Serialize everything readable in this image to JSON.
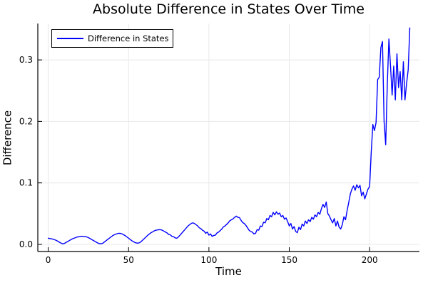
{
  "chart_data": {
    "type": "line",
    "title": "Absolute Difference in States Over Time",
    "xlabel": "Time",
    "ylabel": "Difference",
    "legend_position": "top-left",
    "grid": true,
    "xlim": [
      -6.48,
      231.0
    ],
    "ylim": [
      -0.0116,
      0.3592
    ],
    "xticks": {
      "values": [
        0,
        50,
        100,
        150,
        200
      ],
      "labels": [
        "0",
        "50",
        "100",
        "150",
        "200"
      ]
    },
    "yticks": {
      "values": [
        0.0,
        0.1,
        0.2,
        0.3
      ],
      "labels": [
        "0.0",
        "0.1",
        "0.2",
        "0.3"
      ]
    },
    "colors": {
      "line": "#0000ff",
      "grid": "#e8e8e8",
      "axis": "#000000",
      "text": "#000000",
      "background": "#ffffff"
    },
    "series": [
      {
        "name": "Difference in States",
        "color": "#0000ff",
        "points": [
          [
            0,
            0.01
          ],
          [
            1,
            0.0095
          ],
          [
            2,
            0.009
          ],
          [
            3,
            0.0085
          ],
          [
            4,
            0.0075
          ],
          [
            5,
            0.0065
          ],
          [
            6,
            0.005
          ],
          [
            7,
            0.0035
          ],
          [
            8,
            0.002
          ],
          [
            9,
            0.001
          ],
          [
            10,
            0.0015
          ],
          [
            11,
            0.003
          ],
          [
            12,
            0.0045
          ],
          [
            13,
            0.006
          ],
          [
            14,
            0.0075
          ],
          [
            15,
            0.009
          ],
          [
            16,
            0.01
          ],
          [
            17,
            0.011
          ],
          [
            18,
            0.012
          ],
          [
            19,
            0.0125
          ],
          [
            20,
            0.013
          ],
          [
            21,
            0.0132
          ],
          [
            22,
            0.013
          ],
          [
            23,
            0.0128
          ],
          [
            24,
            0.012
          ],
          [
            25,
            0.011
          ],
          [
            26,
            0.0095
          ],
          [
            27,
            0.008
          ],
          [
            28,
            0.0065
          ],
          [
            29,
            0.005
          ],
          [
            30,
            0.0035
          ],
          [
            31,
            0.002
          ],
          [
            32,
            0.0012
          ],
          [
            33,
            0.001
          ],
          [
            34,
            0.002
          ],
          [
            35,
            0.004
          ],
          [
            36,
            0.006
          ],
          [
            37,
            0.008
          ],
          [
            38,
            0.01
          ],
          [
            39,
            0.012
          ],
          [
            40,
            0.014
          ],
          [
            41,
            0.0155
          ],
          [
            42,
            0.0165
          ],
          [
            43,
            0.0175
          ],
          [
            44,
            0.018
          ],
          [
            45,
            0.0178
          ],
          [
            46,
            0.017
          ],
          [
            47,
            0.0155
          ],
          [
            48,
            0.014
          ],
          [
            49,
            0.012
          ],
          [
            50,
            0.01
          ],
          [
            51,
            0.008
          ],
          [
            52,
            0.006
          ],
          [
            53,
            0.0045
          ],
          [
            54,
            0.003
          ],
          [
            55,
            0.0022
          ],
          [
            56,
            0.002
          ],
          [
            57,
            0.003
          ],
          [
            58,
            0.005
          ],
          [
            59,
            0.0075
          ],
          [
            60,
            0.01
          ],
          [
            61,
            0.0125
          ],
          [
            62,
            0.015
          ],
          [
            63,
            0.017
          ],
          [
            64,
            0.019
          ],
          [
            65,
            0.0205
          ],
          [
            66,
            0.022
          ],
          [
            67,
            0.023
          ],
          [
            68,
            0.0235
          ],
          [
            69,
            0.024
          ],
          [
            70,
            0.0238
          ],
          [
            71,
            0.023
          ],
          [
            72,
            0.0215
          ],
          [
            73,
            0.02
          ],
          [
            74,
            0.0185
          ],
          [
            75,
            0.016
          ],
          [
            76,
            0.0155
          ],
          [
            77,
            0.013
          ],
          [
            78,
            0.0125
          ],
          [
            79,
            0.0105
          ],
          [
            80,
            0.01
          ],
          [
            81,
            0.012
          ],
          [
            82,
            0.015
          ],
          [
            83,
            0.018
          ],
          [
            84,
            0.021
          ],
          [
            85,
            0.024
          ],
          [
            86,
            0.027
          ],
          [
            87,
            0.03
          ],
          [
            88,
            0.032
          ],
          [
            89,
            0.034
          ],
          [
            90,
            0.035
          ],
          [
            91,
            0.034
          ],
          [
            92,
            0.032
          ],
          [
            93,
            0.03
          ],
          [
            94,
            0.027
          ],
          [
            95,
            0.0255
          ],
          [
            96,
            0.023
          ],
          [
            97,
            0.0215
          ],
          [
            98,
            0.018
          ],
          [
            99,
            0.02
          ],
          [
            100,
            0.015
          ],
          [
            101,
            0.017
          ],
          [
            102,
            0.013
          ],
          [
            103,
            0.0145
          ],
          [
            104,
            0.015
          ],
          [
            105,
            0.0185
          ],
          [
            106,
            0.02
          ],
          [
            107,
            0.0225
          ],
          [
            108,
            0.025
          ],
          [
            109,
            0.0285
          ],
          [
            110,
            0.03
          ],
          [
            111,
            0.0325
          ],
          [
            112,
            0.035
          ],
          [
            113,
            0.0385
          ],
          [
            114,
            0.04
          ],
          [
            115,
            0.0415
          ],
          [
            116,
            0.044
          ],
          [
            117,
            0.046
          ],
          [
            118,
            0.044
          ],
          [
            119,
            0.0435
          ],
          [
            120,
            0.039
          ],
          [
            121,
            0.0355
          ],
          [
            122,
            0.034
          ],
          [
            123,
            0.031
          ],
          [
            124,
            0.027
          ],
          [
            125,
            0.023
          ],
          [
            126,
            0.021
          ],
          [
            127,
            0.02
          ],
          [
            128,
            0.017
          ],
          [
            129,
            0.018
          ],
          [
            130,
            0.024
          ],
          [
            131,
            0.023
          ],
          [
            132,
            0.03
          ],
          [
            133,
            0.029
          ],
          [
            134,
            0.036
          ],
          [
            135,
            0.035
          ],
          [
            136,
            0.042
          ],
          [
            137,
            0.04
          ],
          [
            138,
            0.047
          ],
          [
            139,
            0.045
          ],
          [
            140,
            0.052
          ],
          [
            141,
            0.048
          ],
          [
            142,
            0.053
          ],
          [
            143,
            0.049
          ],
          [
            144,
            0.051
          ],
          [
            145,
            0.045
          ],
          [
            146,
            0.047
          ],
          [
            147,
            0.041
          ],
          [
            148,
            0.043
          ],
          [
            149,
            0.037
          ],
          [
            150,
            0.03
          ],
          [
            151,
            0.034
          ],
          [
            152,
            0.025
          ],
          [
            153,
            0.029
          ],
          [
            154,
            0.021
          ],
          [
            155,
            0.019
          ],
          [
            156,
            0.028
          ],
          [
            157,
            0.024
          ],
          [
            158,
            0.033
          ],
          [
            159,
            0.03
          ],
          [
            160,
            0.038
          ],
          [
            161,
            0.034
          ],
          [
            162,
            0.04
          ],
          [
            163,
            0.037
          ],
          [
            164,
            0.044
          ],
          [
            165,
            0.041
          ],
          [
            166,
            0.048
          ],
          [
            167,
            0.045
          ],
          [
            168,
            0.052
          ],
          [
            169,
            0.049
          ],
          [
            170,
            0.058
          ],
          [
            171,
            0.065
          ],
          [
            172,
            0.06
          ],
          [
            173,
            0.069
          ],
          [
            174,
            0.05
          ],
          [
            175,
            0.046
          ],
          [
            176,
            0.04
          ],
          [
            177,
            0.035
          ],
          [
            178,
            0.042
          ],
          [
            179,
            0.03
          ],
          [
            180,
            0.038
          ],
          [
            181,
            0.028
          ],
          [
            182,
            0.025
          ],
          [
            183,
            0.032
          ],
          [
            184,
            0.045
          ],
          [
            185,
            0.04
          ],
          [
            186,
            0.055
          ],
          [
            187,
            0.068
          ],
          [
            188,
            0.082
          ],
          [
            189,
            0.09
          ],
          [
            190,
            0.095
          ],
          [
            191,
            0.088
          ],
          [
            192,
            0.097
          ],
          [
            193,
            0.092
          ],
          [
            194,
            0.096
          ],
          [
            195,
            0.079
          ],
          [
            196,
            0.085
          ],
          [
            197,
            0.074
          ],
          [
            198,
            0.082
          ],
          [
            199,
            0.09
          ],
          [
            200,
            0.094
          ],
          [
            201,
            0.15
          ],
          [
            202,
            0.195
          ],
          [
            203,
            0.185
          ],
          [
            204,
            0.198
          ],
          [
            205,
            0.268
          ],
          [
            206,
            0.272
          ],
          [
            207,
            0.32
          ],
          [
            208,
            0.33
          ],
          [
            209,
            0.2
          ],
          [
            210,
            0.162
          ],
          [
            211,
            0.26
          ],
          [
            212,
            0.334
          ],
          [
            213,
            0.29
          ],
          [
            214,
            0.243
          ],
          [
            215,
            0.29
          ],
          [
            216,
            0.235
          ],
          [
            217,
            0.31
          ],
          [
            218,
            0.255
          ],
          [
            219,
            0.281
          ],
          [
            220,
            0.235
          ],
          [
            221,
            0.297
          ],
          [
            222,
            0.235
          ],
          [
            223,
            0.262
          ],
          [
            224,
            0.284
          ],
          [
            225,
            0.352
          ]
        ]
      }
    ]
  }
}
